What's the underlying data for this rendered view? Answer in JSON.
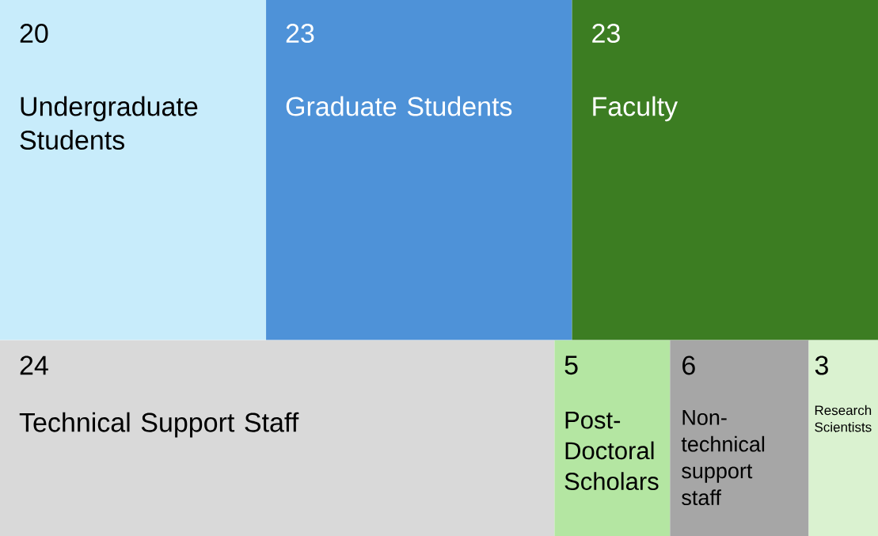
{
  "chart_data": {
    "type": "other",
    "categories": [
      "Undergraduate Students",
      "Graduate Students",
      "Faculty",
      "Technical Support Staff",
      "Post-Doctoral Scholars",
      "Non-technical support staff",
      "Research Scientists"
    ],
    "values": [
      20,
      23,
      23,
      24,
      5,
      6,
      3
    ],
    "colors": [
      "#c8ecfb",
      "#4e92d8",
      "#3c7d22",
      "#d9d9d9",
      "#b4e6a2",
      "#a6a6a6",
      "#daf2d0"
    ],
    "data_labels": true
  }
}
